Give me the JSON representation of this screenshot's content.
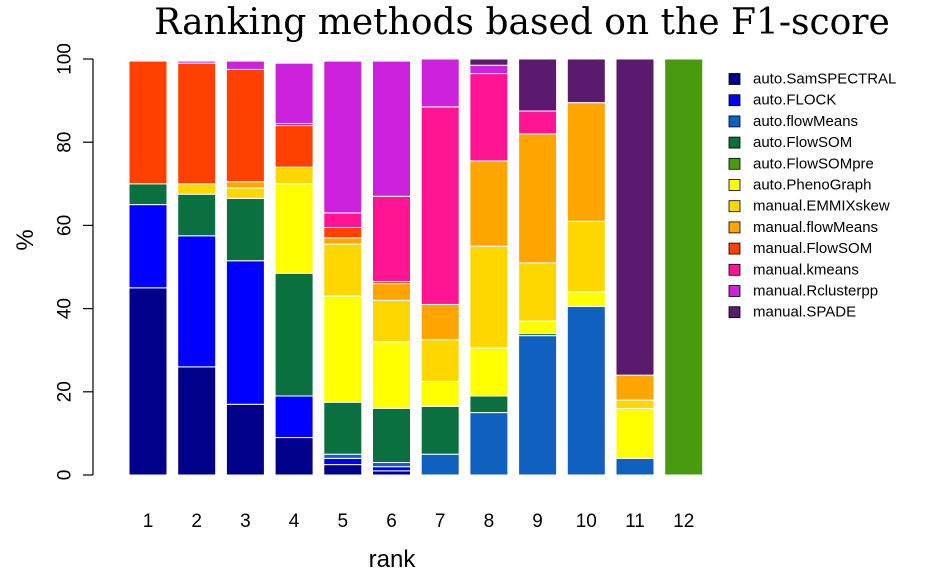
{
  "chart_data": {
    "type": "bar",
    "stacked": true,
    "title": "Ranking methods based on the F1-score",
    "xlabel": "rank",
    "ylabel": "%",
    "ylim": [
      0,
      100
    ],
    "yticks": [
      0,
      20,
      40,
      60,
      80,
      100
    ],
    "categories": [
      "1",
      "2",
      "3",
      "4",
      "5",
      "6",
      "7",
      "8",
      "9",
      "10",
      "11",
      "12"
    ],
    "legend_position": "right",
    "series": [
      {
        "name": "auto.SamSPECTRAL",
        "color": "#00008B",
        "values": [
          45,
          26,
          17,
          9,
          2.5,
          1,
          0,
          0,
          0,
          0,
          0,
          0
        ]
      },
      {
        "name": "auto.FLOCK",
        "color": "#0000FF",
        "values": [
          20,
          31.5,
          34.5,
          10,
          1.5,
          1,
          0,
          0,
          0,
          0,
          0,
          0
        ]
      },
      {
        "name": "auto.flowMeans",
        "color": "#1060C0",
        "values": [
          0,
          0,
          0,
          0,
          1,
          1,
          5,
          15,
          33.5,
          40.5,
          4,
          0
        ]
      },
      {
        "name": "auto.FlowSOM",
        "color": "#0A7040",
        "values": [
          5,
          10,
          15,
          29.5,
          12.5,
          13,
          11.5,
          4,
          0.5,
          0,
          0,
          0
        ]
      },
      {
        "name": "auto.FlowSOMpre",
        "color": "#4A9A10",
        "values": [
          0,
          0,
          0,
          0,
          0,
          0,
          0,
          0,
          0,
          0,
          0,
          100
        ]
      },
      {
        "name": "auto.PhenoGraph",
        "color": "#FFFF00",
        "values": [
          0,
          0,
          0,
          21.5,
          25.5,
          16,
          6,
          11.5,
          3,
          3.5,
          12,
          0
        ]
      },
      {
        "name": "manual.EMMIXskew",
        "color": "#FFD700",
        "values": [
          0,
          2.5,
          2.5,
          4,
          12.5,
          10,
          10,
          24.5,
          14,
          17,
          2,
          0
        ]
      },
      {
        "name": "manual.flowMeans",
        "color": "#FFA500",
        "values": [
          0,
          0,
          1.5,
          0,
          1.5,
          4,
          8.5,
          20.5,
          31,
          28.5,
          6,
          0
        ]
      },
      {
        "name": "manual.FlowSOM",
        "color": "#FF4000",
        "values": [
          29.5,
          29,
          27,
          10,
          2.5,
          0.5,
          0,
          0,
          0,
          0,
          0,
          0
        ]
      },
      {
        "name": "manual.kmeans",
        "color": "#FF1493",
        "values": [
          0,
          0,
          0,
          0.5,
          3.5,
          20.5,
          47.5,
          21,
          5.5,
          0,
          0,
          0
        ]
      },
      {
        "name": "manual.Rclusterpp",
        "color": "#CC22DD",
        "values": [
          0,
          0.5,
          2,
          14.5,
          36.5,
          32.5,
          11.5,
          2,
          0,
          0,
          0,
          0
        ]
      },
      {
        "name": "manual.SPADE",
        "color": "#5A1A6E",
        "values": [
          0,
          0,
          0,
          0,
          0,
          0,
          0,
          1.5,
          12.5,
          10.5,
          76,
          0
        ]
      }
    ]
  }
}
